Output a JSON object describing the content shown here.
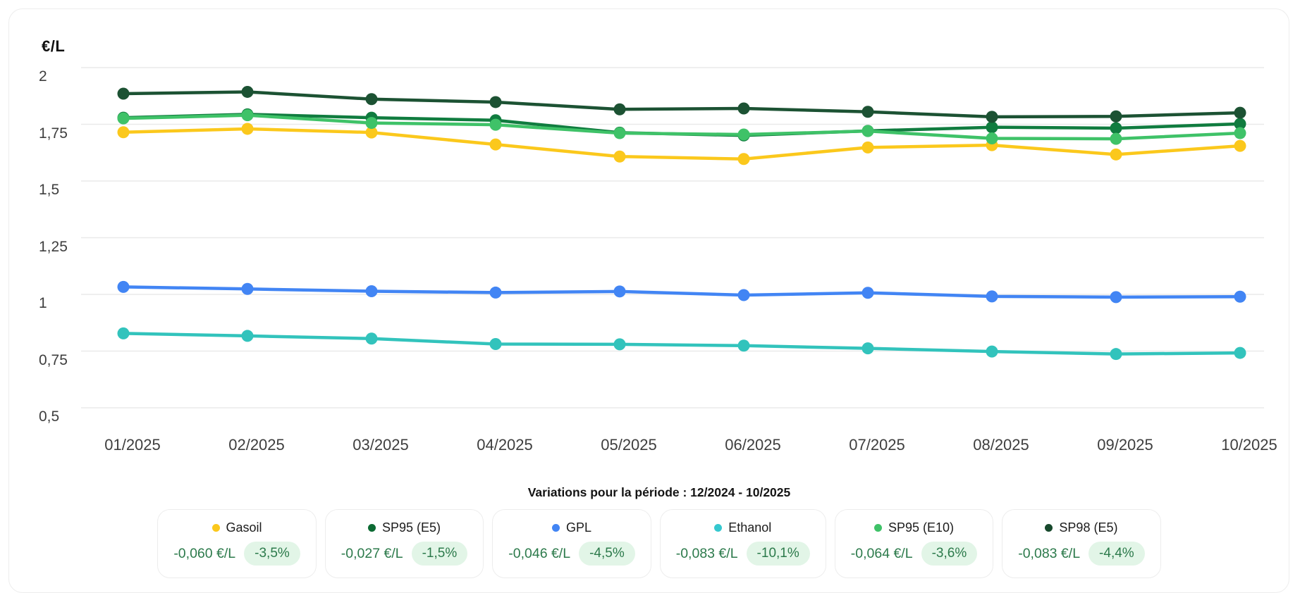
{
  "colors": {
    "badge_bg": "#E2F5E7",
    "variation_text": "#2C7A4B",
    "axis_text": "#3E3E3E",
    "grid_line": "#EAEAEA",
    "card_border": "#EDEDED"
  },
  "chart_data": {
    "type": "line",
    "unit_label": "€/L",
    "xlabel": "",
    "ylabel": "€/L",
    "ylim": [
      0.5,
      2
    ],
    "grid": true,
    "legend_position": "bottom",
    "categories": [
      "01/2025",
      "02/2025",
      "03/2025",
      "04/2025",
      "05/2025",
      "06/2025",
      "07/2025",
      "08/2025",
      "09/2025",
      "10/2025"
    ],
    "yticks": {
      "labels": [
        "2",
        "1,75",
        "1,5",
        "1,25",
        "1",
        "0,75",
        "0,5"
      ],
      "values": [
        2,
        1.75,
        1.5,
        1.25,
        1,
        0.75,
        0.5
      ]
    },
    "series": [
      {
        "name": "Gasoil",
        "color": "#FBC81C",
        "values": [
          1.715,
          1.73,
          1.714,
          1.661,
          1.608,
          1.597,
          1.648,
          1.658,
          1.617,
          1.655
        ]
      },
      {
        "name": "SP95 (E5)",
        "color": "#107C3F",
        "values": [
          1.779,
          1.794,
          1.779,
          1.768,
          1.713,
          1.701,
          1.721,
          1.737,
          1.733,
          1.752
        ]
      },
      {
        "name": "GPL",
        "color": "#4285F4",
        "values": [
          1.033,
          1.024,
          1.014,
          1.008,
          1.013,
          0.997,
          1.007,
          0.991,
          0.988,
          0.99
        ]
      },
      {
        "name": "Ethanol",
        "color": "#32C3BC",
        "values": [
          0.828,
          0.817,
          0.805,
          0.781,
          0.78,
          0.774,
          0.762,
          0.748,
          0.737,
          0.742
        ]
      },
      {
        "name": "SP95 (E10)",
        "color": "#3FC268",
        "values": [
          1.776,
          1.79,
          1.756,
          1.748,
          1.711,
          1.705,
          1.72,
          1.688,
          1.686,
          1.711
        ]
      },
      {
        "name": "SP98 (E5)",
        "color": "#1C5233",
        "values": [
          1.885,
          1.893,
          1.861,
          1.848,
          1.816,
          1.82,
          1.805,
          1.783,
          1.785,
          1.801
        ]
      }
    ],
    "variations_title": "Variations pour la période : 12/2024 - 10/2025",
    "legend": [
      {
        "name": "Gasoil",
        "color": "#FBC81C",
        "delta": "-0,060 €/L",
        "pct": "-3,5%"
      },
      {
        "name": "SP95 (E5)",
        "color": "#0C6A33",
        "delta": "-0,027 €/L",
        "pct": "-1,5%"
      },
      {
        "name": "GPL",
        "color": "#4285F4",
        "delta": "-0,046 €/L",
        "pct": "-4,5%"
      },
      {
        "name": "Ethanol",
        "color": "#35C8CF",
        "delta": "-0,083 €/L",
        "pct": "-10,1%"
      },
      {
        "name": "SP95 (E10)",
        "color": "#3FC268",
        "delta": "-0,064 €/L",
        "pct": "-3,6%"
      },
      {
        "name": "SP98 (E5)",
        "color": "#17492C",
        "delta": "-0,083 €/L",
        "pct": "-4,4%"
      }
    ]
  }
}
